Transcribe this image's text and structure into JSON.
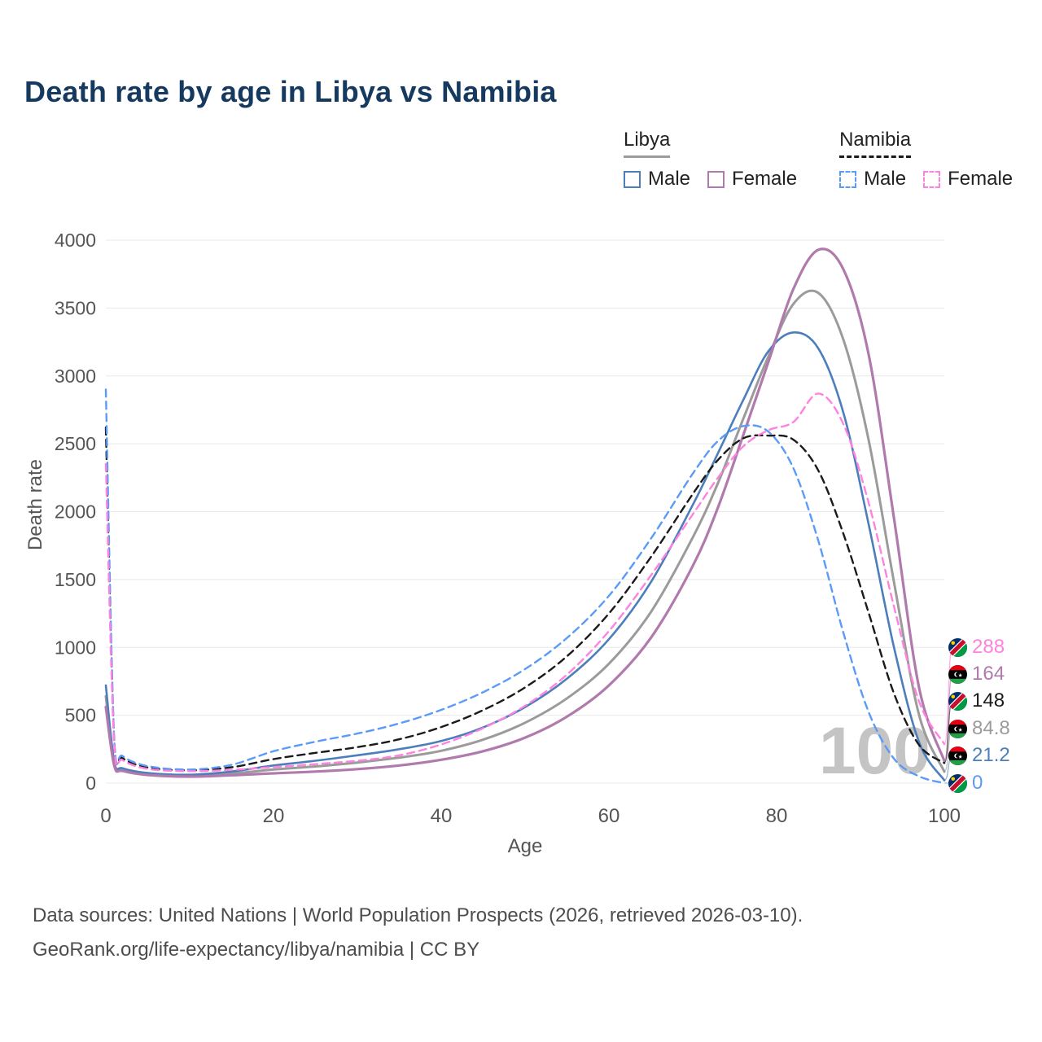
{
  "title": "Death rate by age in Libya vs Namibia",
  "watermark": "100",
  "legend": {
    "libya": {
      "label": "Libya",
      "male": "Male",
      "female": "Female"
    },
    "namibia": {
      "label": "Namibia",
      "male": "Male",
      "female": "Female"
    }
  },
  "footer": {
    "line1": "Data sources: United Nations | World Population Prospects (2026, retrieved 2026-03-10).",
    "line2": "GeoRank.org/life-expectancy/libya/namibia | CC BY"
  },
  "chart_data": {
    "type": "line",
    "title": "Death rate by age in Libya vs Namibia",
    "xlabel": "Age",
    "ylabel": "Death rate",
    "xlim": [
      0,
      100
    ],
    "ylim": [
      0,
      4000
    ],
    "x_ticks": [
      0,
      20,
      40,
      60,
      80,
      100
    ],
    "y_ticks": [
      0,
      500,
      1000,
      1500,
      2000,
      2500,
      3000,
      3500,
      4000
    ],
    "grid": true,
    "legend_position": "top-right",
    "x": [
      0,
      1,
      2,
      5,
      10,
      15,
      20,
      25,
      30,
      35,
      40,
      45,
      50,
      55,
      60,
      65,
      70,
      73,
      76,
      79,
      82,
      85,
      88,
      91,
      94,
      97,
      100
    ],
    "series": [
      {
        "name": "Libya",
        "color": "#9b9b9b",
        "dash": false,
        "width": 3,
        "values": [
          640,
          145,
          100,
          67,
          55,
          71,
          100,
          123,
          152,
          188,
          238,
          320,
          445,
          625,
          880,
          1260,
          1810,
          2210,
          2680,
          3140,
          3530,
          3610,
          3260,
          2520,
          1480,
          500,
          84.8
        ]
      },
      {
        "name": "Libya Male",
        "color": "#4c7ebb",
        "dash": false,
        "width": 2.6,
        "values": [
          720,
          160,
          110,
          75,
          62,
          85,
          130,
          165,
          205,
          250,
          310,
          410,
          560,
          770,
          1060,
          1480,
          2050,
          2430,
          2820,
          3180,
          3320,
          3200,
          2720,
          1900,
          1000,
          300,
          21.2
        ]
      },
      {
        "name": "Libya Female",
        "color": "#b07aad",
        "dash": false,
        "width": 3.2,
        "values": [
          560,
          130,
          90,
          60,
          48,
          58,
          72,
          85,
          103,
          130,
          172,
          235,
          335,
          490,
          720,
          1070,
          1600,
          2030,
          2560,
          3100,
          3640,
          3930,
          3780,
          3150,
          1950,
          700,
          164
        ]
      },
      {
        "name": "Namibia",
        "color": "#1a1a1a",
        "dash": true,
        "width": 2.4,
        "values": [
          2620,
          300,
          185,
          115,
          94,
          117,
          177,
          223,
          265,
          323,
          413,
          538,
          705,
          935,
          1250,
          1665,
          2130,
          2380,
          2540,
          2560,
          2530,
          2300,
          1830,
          1250,
          660,
          280,
          148
        ]
      },
      {
        "name": "Namibia Male",
        "color": "#5b9bf8",
        "dash": true,
        "width": 2.4,
        "values": [
          2900,
          320,
          200,
          125,
          100,
          135,
          235,
          305,
          365,
          440,
          540,
          670,
          840,
          1070,
          1380,
          1800,
          2280,
          2520,
          2630,
          2590,
          2320,
          1780,
          1100,
          520,
          180,
          50,
          0
        ]
      },
      {
        "name": "Namibia Female",
        "color": "#ff82df",
        "dash": true,
        "width": 2.4,
        "values": [
          2350,
          280,
          170,
          105,
          88,
          98,
          118,
          140,
          165,
          205,
          285,
          405,
          570,
          800,
          1120,
          1530,
          1980,
          2250,
          2480,
          2600,
          2660,
          2870,
          2640,
          2060,
          1300,
          600,
          288
        ]
      }
    ],
    "endpoint_labels": [
      {
        "value": "288",
        "value_num": 288,
        "flag": "namibia",
        "color": "#ff82df"
      },
      {
        "value": "164",
        "value_num": 164,
        "flag": "libya",
        "color": "#b07aad"
      },
      {
        "value": "148",
        "value_num": 148,
        "flag": "namibia",
        "color": "#1a1a1a"
      },
      {
        "value": "84.8",
        "value_num": 84.8,
        "flag": "libya",
        "color": "#9b9b9b"
      },
      {
        "value": "21.2",
        "value_num": 21.2,
        "flag": "libya",
        "color": "#4c7ebb"
      },
      {
        "value": "0",
        "value_num": 0,
        "flag": "namibia",
        "color": "#5b9bf8"
      }
    ]
  }
}
